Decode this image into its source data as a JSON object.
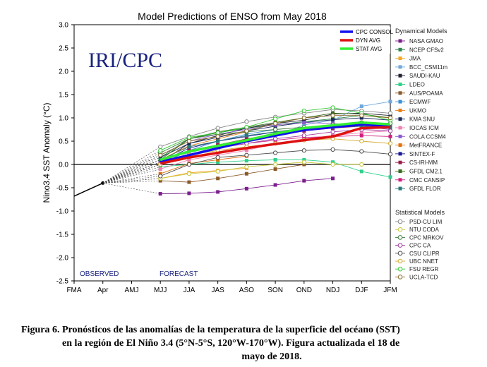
{
  "chart_data": {
    "type": "line",
    "title": "Model Predictions of ENSO from May 2018",
    "watermark": "IRI/CPC",
    "ylabel": "Nino3.4 SST Anomaly (°C)",
    "ylim": [
      -2.5,
      3.0
    ],
    "yticks": [
      "-2.5",
      "-2.0",
      "-1.5",
      "-1.0",
      "-0.5",
      "0.0",
      "0.5",
      "1.0",
      "1.5",
      "2.0",
      "2.5",
      "3.0"
    ],
    "categories": [
      "FMA",
      "Apr",
      "AMJ",
      "MJJ",
      "JJA",
      "JAS",
      "ASO",
      "SON",
      "OND",
      "NDJ",
      "DJF",
      "JFM"
    ],
    "observed_label": "OBSERVED",
    "forecast_label": "FORECAST",
    "observed": [
      -0.68,
      -0.4
    ],
    "cpc_legend": [
      {
        "name": "CPC CONSOL",
        "color": "#1010ee"
      },
      {
        "name": "DYN AVG",
        "color": "#dd1111"
      },
      {
        "name": "STAT AVG",
        "color": "#33ee33"
      }
    ],
    "dyn_legend_title": "Dynamical Models",
    "stat_legend_title": "Statistical Models",
    "averages": [
      {
        "name": "CPC CONSOL",
        "color": "#1010ee",
        "values": [
          0.05,
          0.2,
          0.35,
          0.5,
          0.62,
          0.74,
          0.8,
          0.86,
          0.82
        ]
      },
      {
        "name": "DYN AVG",
        "color": "#dd1111",
        "values": [
          0.02,
          0.15,
          0.25,
          0.35,
          0.44,
          0.52,
          0.6,
          0.78,
          0.8
        ]
      },
      {
        "name": "STAT AVG",
        "color": "#33ee33",
        "values": [
          0.1,
          0.28,
          0.4,
          0.52,
          0.66,
          0.78,
          0.84,
          0.9,
          0.86
        ]
      }
    ],
    "dynamical_series": [
      {
        "name": "NASA GMAO",
        "color": "#7b1f8c",
        "values": [
          -0.63,
          -0.62,
          -0.59,
          -0.52,
          -0.44,
          -0.35,
          -0.3,
          null,
          null
        ]
      },
      {
        "name": "NCEP CFSv2",
        "color": "#2a8a4a",
        "values": [
          0.15,
          0.55,
          0.68,
          0.78,
          0.85,
          0.92,
          0.98,
          1.05,
          null
        ]
      },
      {
        "name": "JMA",
        "color": "#f4a626",
        "values": [
          -0.3,
          -0.18,
          -0.13,
          -0.08,
          null,
          null,
          null,
          null,
          null
        ]
      },
      {
        "name": "BCC_CSM11m",
        "color": "#6fa8dc",
        "values": [
          0.1,
          0.25,
          0.4,
          0.5,
          0.6,
          0.85,
          0.95,
          1.25,
          1.35
        ]
      },
      {
        "name": "SAUDI-KAU",
        "color": "#222233",
        "values": [
          0.05,
          0.45,
          0.62,
          0.78,
          0.88,
          0.95,
          1.08,
          1.1,
          1.05
        ]
      },
      {
        "name": "LDEO",
        "color": "#2fd08a",
        "values": [
          -0.05,
          0.0,
          0.05,
          0.08,
          0.1,
          0.1,
          0.05,
          -0.15,
          -0.27
        ]
      },
      {
        "name": "AUS/POAMA",
        "color": "#8b5a2b",
        "values": [
          -0.35,
          -0.38,
          -0.3,
          -0.2,
          -0.1,
          0.0,
          null,
          null,
          null
        ]
      },
      {
        "name": "ECMWF",
        "color": "#3a8fd6",
        "values": [
          0.0,
          0.3,
          0.5,
          0.65,
          0.75,
          null,
          null,
          null,
          null
        ]
      },
      {
        "name": "UKMO",
        "color": "#e8801a",
        "values": [
          0.1,
          0.4,
          0.55,
          0.7,
          null,
          null,
          null,
          null,
          null
        ]
      },
      {
        "name": "KMA SNU",
        "color": "#1a2a5a",
        "values": [
          0.15,
          0.45,
          0.58,
          0.72,
          0.82,
          0.9,
          0.96,
          1.0,
          0.95
        ]
      },
      {
        "name": "IOCAS ICM",
        "color": "#f080b0",
        "values": [
          -0.1,
          0.1,
          0.2,
          0.3,
          0.45,
          0.55,
          0.62,
          0.68,
          0.72
        ]
      },
      {
        "name": "COLA CCSM4",
        "color": "#8a5ad0",
        "values": [
          0.2,
          0.5,
          0.65,
          0.75,
          0.85,
          0.9,
          0.88,
          0.82,
          0.75
        ]
      },
      {
        "name": "MetFRANCE",
        "color": "#e07010",
        "values": [
          -0.2,
          0.02,
          0.1,
          0.18,
          null,
          null,
          null,
          null,
          null
        ]
      },
      {
        "name": "SINTEX-F",
        "color": "#1a1a90",
        "values": [
          0.05,
          0.35,
          0.5,
          0.6,
          0.7,
          0.78,
          0.85,
          0.9,
          0.88
        ]
      },
      {
        "name": "CS-IRI-MM",
        "color": "#9a1a4a",
        "values": [
          0.05,
          0.3,
          0.42,
          0.55,
          0.65,
          0.72,
          0.78,
          0.82,
          0.8
        ]
      },
      {
        "name": "GFDL CM2.1",
        "color": "#3a6a1a",
        "values": [
          0.1,
          0.55,
          0.7,
          0.8,
          0.9,
          1.0,
          1.1,
          1.08,
          1.0
        ]
      },
      {
        "name": "CMC CANSIP",
        "color": "#d02080",
        "values": [
          0.0,
          0.2,
          0.35,
          0.45,
          0.52,
          0.58,
          0.6,
          0.62,
          0.6
        ]
      },
      {
        "name": "GFDL FLOR",
        "color": "#2a7a7a",
        "values": [
          0.1,
          0.38,
          0.5,
          0.62,
          0.7,
          0.75,
          0.8,
          0.82,
          0.78
        ]
      }
    ],
    "statistical_series": [
      {
        "name": "PSD-CU LIM",
        "color": "#888888",
        "values": [
          0.38,
          0.6,
          0.78,
          0.92,
          1.02,
          1.1,
          1.18,
          1.15,
          1.1
        ]
      },
      {
        "name": "NTU CODA",
        "color": "#c8c83a",
        "values": [
          -0.3,
          -0.2,
          -0.15,
          -0.05,
          0.0,
          0.05,
          0.0,
          0.0,
          null
        ]
      },
      {
        "name": "CPC MRKOV",
        "color": "#3a7a3a",
        "values": [
          0.25,
          0.55,
          0.65,
          0.7,
          0.75,
          0.8,
          0.85,
          0.9,
          0.88
        ]
      },
      {
        "name": "CPC CA",
        "color": "#a03aa0",
        "values": [
          0.0,
          0.2,
          0.35,
          0.45,
          0.55,
          0.62,
          0.7,
          0.75,
          0.72
        ]
      },
      {
        "name": "CSU CLIPR",
        "color": "#4a4a4a",
        "values": [
          -0.25,
          0.0,
          0.15,
          0.2,
          0.25,
          0.3,
          0.32,
          0.28,
          0.22
        ]
      },
      {
        "name": "UBC NNET",
        "color": "#d4aa30",
        "values": [
          0.0,
          0.2,
          0.3,
          0.38,
          0.45,
          0.52,
          0.55,
          0.5,
          0.45
        ]
      },
      {
        "name": "FSU REGR",
        "color": "#33cc33",
        "values": [
          0.3,
          0.58,
          0.68,
          0.8,
          0.98,
          1.15,
          1.22,
          1.1,
          0.95
        ]
      },
      {
        "name": "UCLA-TCD",
        "color": "#8b6a2a",
        "values": [
          0.2,
          0.5,
          0.6,
          0.72,
          0.88,
          1.0,
          1.05,
          1.05,
          1.0
        ]
      }
    ]
  },
  "caption": {
    "line1": "Figura 6. Pronósticos de las anomalías de la temperatura de la superficie del océano (SST)",
    "line2": "en la región de El Niño 3.4 (5°N-5°S, 120°W-170°W). Figura actualizada el 18 de",
    "line3": "mayo de 2018."
  }
}
